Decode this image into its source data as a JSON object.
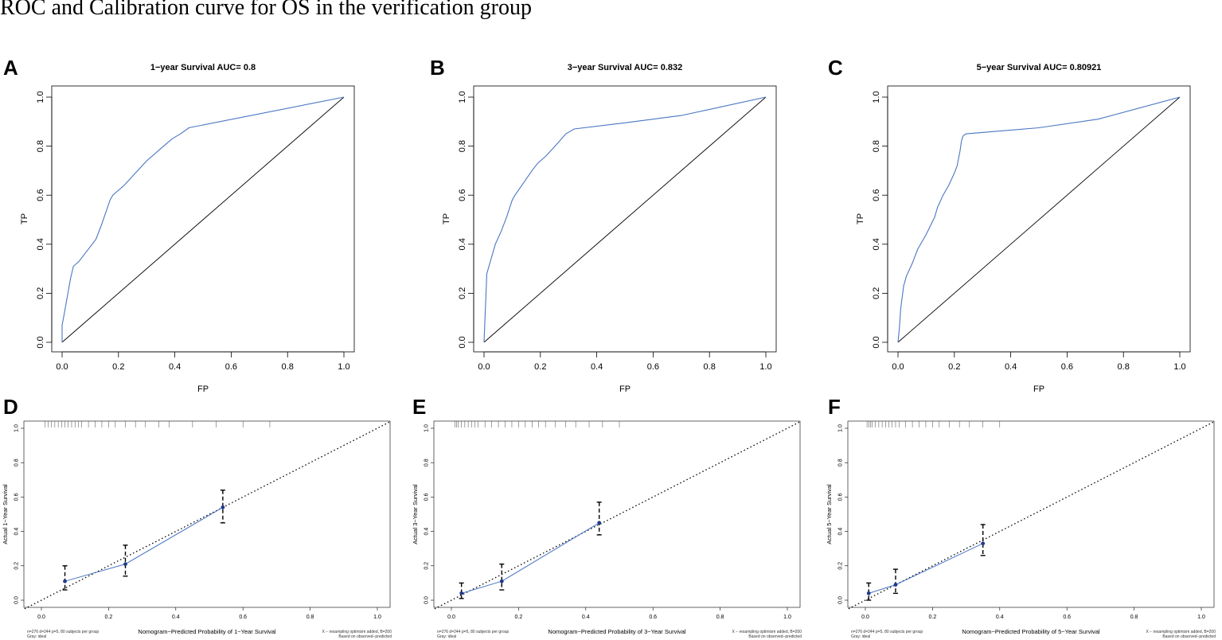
{
  "figure_title": "ROC and Calibration curve for OS in the verification group",
  "colors": {
    "curve": "#4a76c4",
    "point": "#1f3a8a",
    "ref": "#000000",
    "background": "#ffffff"
  },
  "chart_data": [
    {
      "panel": "A",
      "type": "line",
      "title": "1−year Survival AUC= 0.8",
      "xlabel": "FP",
      "ylabel": "TP",
      "xlim": [
        0,
        1
      ],
      "ylim": [
        0,
        1
      ],
      "xticks": [
        "0.0",
        "0.2",
        "0.4",
        "0.6",
        "0.8",
        "1.0"
      ],
      "yticks": [
        "0.0",
        "0.2",
        "0.4",
        "0.6",
        "0.8",
        "1.0"
      ],
      "reference_line": [
        [
          0,
          0
        ],
        [
          1,
          1
        ]
      ],
      "series": [
        {
          "name": "ROC",
          "x": [
            0,
            0,
            0.005,
            0.03,
            0.04,
            0.06,
            0.08,
            0.1,
            0.12,
            0.14,
            0.17,
            0.18,
            0.22,
            0.26,
            0.3,
            0.35,
            0.39,
            0.42,
            0.45,
            1.0
          ],
          "y": [
            0,
            0.07,
            0.1,
            0.26,
            0.31,
            0.33,
            0.36,
            0.39,
            0.42,
            0.48,
            0.58,
            0.6,
            0.64,
            0.69,
            0.74,
            0.79,
            0.83,
            0.85,
            0.875,
            1.0
          ]
        }
      ]
    },
    {
      "panel": "B",
      "type": "line",
      "title": "3−year Survival AUC= 0.832",
      "xlabel": "FP",
      "ylabel": "TP",
      "xlim": [
        0,
        1
      ],
      "ylim": [
        0,
        1
      ],
      "xticks": [
        "0.0",
        "0.2",
        "0.4",
        "0.6",
        "0.8",
        "1.0"
      ],
      "yticks": [
        "0.0",
        "0.2",
        "0.4",
        "0.6",
        "0.8",
        "1.0"
      ],
      "reference_line": [
        [
          0,
          0
        ],
        [
          1,
          1
        ]
      ],
      "series": [
        {
          "name": "ROC",
          "x": [
            0,
            0.01,
            0.02,
            0.04,
            0.06,
            0.08,
            0.1,
            0.11,
            0.14,
            0.17,
            0.19,
            0.22,
            0.26,
            0.29,
            0.32,
            0.5,
            0.7,
            1.0
          ],
          "y": [
            0,
            0.28,
            0.32,
            0.4,
            0.45,
            0.51,
            0.58,
            0.6,
            0.65,
            0.7,
            0.73,
            0.76,
            0.81,
            0.85,
            0.87,
            0.895,
            0.925,
            1.0
          ]
        }
      ]
    },
    {
      "panel": "C",
      "type": "line",
      "title": "5−year Survival AUC= 0.80921",
      "xlabel": "FP",
      "ylabel": "TP",
      "xlim": [
        0,
        1
      ],
      "ylim": [
        0,
        1
      ],
      "xticks": [
        "0.0",
        "0.2",
        "0.4",
        "0.6",
        "0.8",
        "1.0"
      ],
      "yticks": [
        "0.0",
        "0.2",
        "0.4",
        "0.6",
        "0.8",
        "1.0"
      ],
      "reference_line": [
        [
          0,
          0
        ],
        [
          1,
          1
        ]
      ],
      "series": [
        {
          "name": "ROC",
          "x": [
            0,
            0.005,
            0.01,
            0.02,
            0.03,
            0.05,
            0.07,
            0.1,
            0.13,
            0.14,
            0.16,
            0.18,
            0.2,
            0.21,
            0.22,
            0.225,
            0.23,
            0.24,
            0.5,
            0.71,
            1.0
          ],
          "y": [
            0,
            0.06,
            0.14,
            0.23,
            0.27,
            0.32,
            0.38,
            0.44,
            0.51,
            0.55,
            0.6,
            0.64,
            0.69,
            0.72,
            0.78,
            0.82,
            0.84,
            0.85,
            0.875,
            0.91,
            1.0
          ]
        }
      ]
    },
    {
      "panel": "D",
      "type": "line",
      "xlabel": "Nomogram−Predicted Probability of 1−Year Survival",
      "ylabel": "Actual 1−Year Survival",
      "xlim": [
        0,
        1
      ],
      "ylim": [
        0,
        1
      ],
      "xticks": [
        "0.0",
        "0.2",
        "0.4",
        "0.6",
        "0.8",
        "1.0"
      ],
      "yticks": [
        "0.0",
        "0.2",
        "0.4",
        "0.6",
        "0.8",
        "1.0"
      ],
      "footer_left": [
        "n=276 d=244 p=5, 80 subjects per group",
        "Gray: ideal"
      ],
      "footer_right": [
        "X − resampling optimism added, B=200",
        "Based on observed−predicted"
      ],
      "rug": [
        0.01,
        0.02,
        0.03,
        0.04,
        0.05,
        0.06,
        0.07,
        0.08,
        0.09,
        0.1,
        0.11,
        0.12,
        0.14,
        0.16,
        0.18,
        0.2,
        0.22,
        0.25,
        0.28,
        0.31,
        0.35,
        0.38,
        0.45,
        0.52,
        0.6,
        0.68
      ],
      "series": [
        {
          "name": "Calibration",
          "x": [
            0.07,
            0.25,
            0.54
          ],
          "y": [
            0.11,
            0.21,
            0.54
          ],
          "ci_low": [
            0.06,
            0.14,
            0.45
          ],
          "ci_high": [
            0.2,
            0.32,
            0.64
          ]
        }
      ]
    },
    {
      "panel": "E",
      "type": "line",
      "xlabel": "Nomogram−Predicted Probability of 3−Year Survival",
      "ylabel": "Actual 3−Year Survival",
      "xlim": [
        0,
        1
      ],
      "ylim": [
        0,
        1
      ],
      "xticks": [
        "0.0",
        "0.2",
        "0.4",
        "0.6",
        "0.8",
        "1.0"
      ],
      "yticks": [
        "0.0",
        "0.2",
        "0.4",
        "0.6",
        "0.8",
        "1.0"
      ],
      "footer_left": [
        "n=276 d=244 p=5, 80 subjects per group",
        "Gray: ideal"
      ],
      "footer_right": [
        "X − resampling optimism added, B=200",
        "Based on observed−predicted"
      ],
      "rug": [
        0.01,
        0.015,
        0.02,
        0.03,
        0.04,
        0.05,
        0.06,
        0.07,
        0.08,
        0.1,
        0.12,
        0.14,
        0.16,
        0.18,
        0.2,
        0.22,
        0.24,
        0.26,
        0.28,
        0.31,
        0.34,
        0.37,
        0.41,
        0.45,
        0.5
      ],
      "series": [
        {
          "name": "Calibration",
          "x": [
            0.03,
            0.15,
            0.44
          ],
          "y": [
            0.04,
            0.11,
            0.45
          ],
          "ci_low": [
            0.01,
            0.06,
            0.38
          ],
          "ci_high": [
            0.1,
            0.21,
            0.57
          ]
        }
      ]
    },
    {
      "panel": "F",
      "type": "line",
      "xlabel": "Nomogram−Predicted Probability of 5−Year Survival",
      "ylabel": "Actual 5−Year Survival",
      "xlim": [
        0,
        1
      ],
      "ylim": [
        0,
        1
      ],
      "xticks": [
        "0.0",
        "0.2",
        "0.4",
        "0.6",
        "0.8",
        "1.0"
      ],
      "yticks": [
        "0.0",
        "0.2",
        "0.4",
        "0.6",
        "0.8",
        "1.0"
      ],
      "footer_left": [
        "n=276 d=244 p=5, 80 subjects per group",
        "Gray: ideal"
      ],
      "footer_right": [
        "X − resampling optimism added, B=200",
        "Based on observed−predicted"
      ],
      "rug": [
        0.005,
        0.01,
        0.015,
        0.02,
        0.03,
        0.04,
        0.05,
        0.06,
        0.07,
        0.08,
        0.09,
        0.1,
        0.12,
        0.14,
        0.16,
        0.18,
        0.2,
        0.22,
        0.25,
        0.28,
        0.31,
        0.35,
        0.4
      ],
      "series": [
        {
          "name": "Calibration",
          "x": [
            0.01,
            0.09,
            0.35
          ],
          "y": [
            0.04,
            0.09,
            0.33
          ],
          "ci_low": [
            0.0,
            0.04,
            0.26
          ],
          "ci_high": [
            0.1,
            0.18,
            0.44
          ]
        }
      ]
    }
  ]
}
